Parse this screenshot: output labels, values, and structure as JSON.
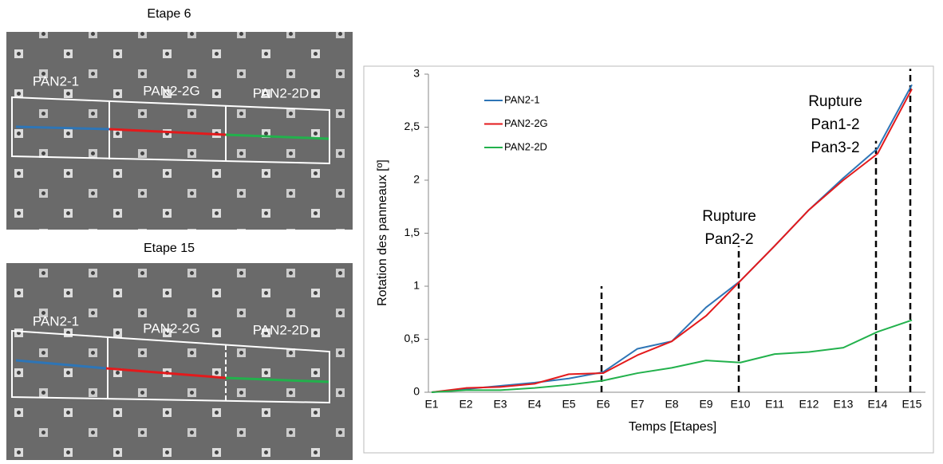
{
  "images": [
    {
      "title": "Etape 6",
      "labels": [
        "PAN2-1",
        "PAN2-2G",
        "PAN2-2D"
      ]
    },
    {
      "title": "Etape 15",
      "labels": [
        "PAN2-1",
        "PAN2-2G",
        "PAN2-2D"
      ]
    }
  ],
  "chart_data": {
    "type": "line",
    "y_label": "Rotation des panneaux [º]",
    "x_label": "Temps [Etapes]",
    "categories": [
      "E1",
      "E2",
      "E3",
      "E4",
      "E5",
      "E6",
      "E7",
      "E8",
      "E9",
      "E10",
      "E11",
      "E12",
      "E13",
      "E14",
      "E15"
    ],
    "series": [
      {
        "name": "PAN2-1",
        "color": "#2e75b6",
        "values": [
          0,
          0.03,
          0.06,
          0.09,
          0.13,
          0.19,
          0.41,
          0.48,
          0.8,
          1.05,
          1.38,
          1.72,
          2.02,
          2.3,
          2.9
        ]
      },
      {
        "name": "PAN2-2G",
        "color": "#e31a1c",
        "values": [
          0,
          0.04,
          0.05,
          0.08,
          0.17,
          0.18,
          0.35,
          0.48,
          0.72,
          1.05,
          1.38,
          1.72,
          2.0,
          2.25,
          2.86
        ]
      },
      {
        "name": "PAN2-2D",
        "color": "#22b14c",
        "values": [
          0,
          0.02,
          0.02,
          0.04,
          0.07,
          0.11,
          0.18,
          0.23,
          0.3,
          0.28,
          0.36,
          0.38,
          0.42,
          0.57,
          0.68
        ]
      }
    ],
    "ylim": [
      0,
      3
    ],
    "yticks": [
      0,
      {
        "value": 0.5,
        "label": "0,5"
      },
      1,
      {
        "value": 1.5,
        "label": "1,5"
      },
      2,
      {
        "value": 2.5,
        "label": "2,5"
      },
      3
    ],
    "markers": [
      {
        "category": "E6",
        "top": 1
      },
      {
        "category": "E10",
        "top": 1.38
      },
      {
        "category": "E14",
        "top": 2.37
      },
      {
        "category": "E15",
        "top": 3.05
      }
    ],
    "annotations": [
      {
        "lines": [
          "Rupture",
          "Pan2-2"
        ]
      },
      {
        "lines": [
          "Rupture",
          "Pan1-2",
          "Pan3-2"
        ]
      }
    ]
  }
}
